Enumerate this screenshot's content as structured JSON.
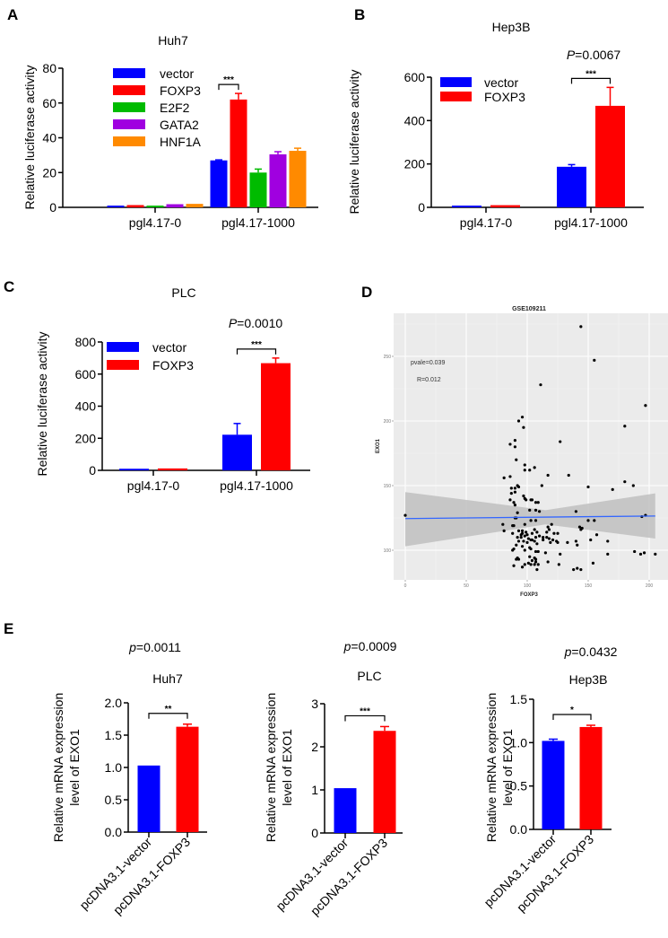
{
  "colors": {
    "vector": "#0000ff",
    "FOXP3": "#ff0000",
    "E2F2": "#00bb00",
    "GATA2": "#a000e0",
    "HNF1A": "#ff8a00",
    "scatter_bg": "#ebebeb",
    "fit_line": "#3366ff",
    "ci_band": "#bdbdbd"
  },
  "chart_data": [
    {
      "id": "A",
      "panel_label": "A",
      "type": "bar",
      "title": "Huh7",
      "ylabel": "Relative luciferase activity",
      "xlabel": "",
      "ylim": [
        0,
        80
      ],
      "yticks": [
        "0",
        "20",
        "40",
        "60",
        "80"
      ],
      "categories": [
        "pgl4.17-0",
        "pgl4.17-1000"
      ],
      "legend": [
        "vector",
        "FOXP3",
        "E2F2",
        "GATA2",
        "HNF1A"
      ],
      "legend_position": "top-left",
      "series": [
        {
          "name": "vector",
          "values": [
            1,
            27
          ],
          "errors": [
            0,
            0.3
          ]
        },
        {
          "name": "FOXP3",
          "values": [
            1.3,
            62
          ],
          "errors": [
            0,
            3.5
          ]
        },
        {
          "name": "E2F2",
          "values": [
            1,
            20
          ],
          "errors": [
            0,
            2
          ]
        },
        {
          "name": "GATA2",
          "values": [
            1.8,
            30.5
          ],
          "errors": [
            0,
            1.5
          ]
        },
        {
          "name": "HNF1A",
          "values": [
            2,
            32.5
          ],
          "errors": [
            0,
            1.5
          ]
        }
      ],
      "annotations": [
        {
          "text": "***",
          "category": "pgl4.17-1000",
          "between": [
            "vector",
            "FOXP3"
          ]
        }
      ]
    },
    {
      "id": "B",
      "panel_label": "B",
      "type": "bar",
      "title": "Hep3B",
      "ylabel": "Relative luciferase activity",
      "xlabel": "",
      "ylim": [
        0,
        600
      ],
      "yticks": [
        "0",
        "200",
        "400",
        "600"
      ],
      "categories": [
        "pgl4.17-0",
        "pgl4.17-1000"
      ],
      "legend": [
        "vector",
        "FOXP3"
      ],
      "legend_position": "top-left",
      "series": [
        {
          "name": "vector",
          "values": [
            8,
            187
          ],
          "errors": [
            0,
            10
          ]
        },
        {
          "name": "FOXP3",
          "values": [
            10,
            468
          ],
          "errors": [
            0,
            85
          ]
        }
      ],
      "pvalue_prefix": "P",
      "pvalue_text": "=0.0067",
      "annotations": [
        {
          "text": "***",
          "category": "pgl4.17-1000",
          "between": [
            "vector",
            "FOXP3"
          ]
        }
      ]
    },
    {
      "id": "C",
      "panel_label": "C",
      "type": "bar",
      "title": "PLC",
      "ylabel": "Relative luciferase activity",
      "xlabel": "",
      "ylim": [
        0,
        800
      ],
      "yticks": [
        "0",
        "200",
        "400",
        "600",
        "800"
      ],
      "categories": [
        "pgl4.17-0",
        "pgl4.17-1000"
      ],
      "legend": [
        "vector",
        "FOXP3"
      ],
      "legend_position": "top-left",
      "series": [
        {
          "name": "vector",
          "values": [
            10,
            222
          ],
          "errors": [
            0,
            70
          ]
        },
        {
          "name": "FOXP3",
          "values": [
            12,
            668
          ],
          "errors": [
            0,
            32
          ]
        }
      ],
      "pvalue_prefix": "P",
      "pvalue_text": "=0.0010",
      "annotations": [
        {
          "text": "***",
          "category": "pgl4.17-1000",
          "between": [
            "vector",
            "FOXP3"
          ]
        }
      ]
    },
    {
      "id": "D",
      "panel_label": "D",
      "type": "scatter",
      "title": "GSE109211",
      "xlabel": "FOXP3",
      "ylabel": "EXO1",
      "xlim": [
        -8,
        210
      ],
      "ylim": [
        76,
        282
      ],
      "xticks": [
        0,
        50,
        100,
        150,
        200
      ],
      "yticks": [
        100,
        150,
        200,
        250
      ],
      "grid": true,
      "annotations": [
        "pvale=0.039",
        "R=0.012"
      ],
      "fit": {
        "type": "linear",
        "x": [
          0,
          205
        ],
        "y": [
          124.5,
          126.5
        ],
        "ci_lower": [
          103,
          109
        ],
        "ci_upper": [
          145,
          144
        ],
        "ci_mid_lower": 120,
        "ci_mid_upper": 131,
        "ci_mid_x": 115
      },
      "points": [
        [
          0,
          127
        ],
        [
          144,
          273
        ],
        [
          155,
          247
        ],
        [
          111,
          228
        ],
        [
          197,
          212
        ],
        [
          96,
          203
        ],
        [
          93,
          200
        ],
        [
          97,
          195
        ],
        [
          180,
          196
        ],
        [
          90,
          185
        ],
        [
          127,
          184
        ],
        [
          86,
          182
        ],
        [
          90,
          180
        ],
        [
          91,
          170
        ],
        [
          98,
          166
        ],
        [
          81,
          156
        ],
        [
          86,
          157
        ],
        [
          117,
          158
        ],
        [
          134,
          158
        ],
        [
          98,
          162
        ],
        [
          102,
          162
        ],
        [
          106,
          164
        ],
        [
          112,
          150
        ],
        [
          150,
          149
        ],
        [
          180,
          153
        ],
        [
          187,
          150
        ],
        [
          170,
          147
        ],
        [
          92,
          150
        ],
        [
          93,
          149
        ],
        [
          87,
          148
        ],
        [
          90,
          148
        ],
        [
          87,
          144
        ],
        [
          90,
          145
        ],
        [
          97,
          142
        ],
        [
          98,
          140
        ],
        [
          99,
          139
        ],
        [
          103,
          139
        ],
        [
          104,
          139
        ],
        [
          86,
          139
        ],
        [
          89,
          137
        ],
        [
          90,
          135
        ],
        [
          107,
          137
        ],
        [
          109,
          137
        ],
        [
          102,
          131
        ],
        [
          107,
          131
        ],
        [
          110,
          130
        ],
        [
          140,
          130
        ],
        [
          92,
          129
        ],
        [
          91,
          125
        ],
        [
          90,
          125
        ],
        [
          103,
          123
        ],
        [
          107,
          123
        ],
        [
          150,
          123
        ],
        [
          155,
          123
        ],
        [
          194,
          126
        ],
        [
          197,
          127
        ],
        [
          80,
          120
        ],
        [
          88,
          119
        ],
        [
          89,
          119
        ],
        [
          98,
          120
        ],
        [
          120,
          120
        ],
        [
          117,
          118
        ],
        [
          118,
          116
        ],
        [
          143,
          118
        ],
        [
          144,
          116
        ],
        [
          145,
          117
        ],
        [
          81,
          115
        ],
        [
          93,
          115
        ],
        [
          96,
          115
        ],
        [
          99,
          114
        ],
        [
          88,
          113
        ],
        [
          95,
          112
        ],
        [
          96,
          113
        ],
        [
          100,
          112
        ],
        [
          104,
          113
        ],
        [
          106,
          116
        ],
        [
          108,
          114
        ],
        [
          116,
          114
        ],
        [
          122,
          113
        ],
        [
          125,
          113
        ],
        [
          157,
          112
        ],
        [
          92,
          110
        ],
        [
          95,
          110
        ],
        [
          98,
          111
        ],
        [
          101,
          109
        ],
        [
          103,
          108
        ],
        [
          107,
          110
        ],
        [
          110,
          111
        ],
        [
          113,
          110
        ],
        [
          116,
          110
        ],
        [
          118,
          109
        ],
        [
          121,
          108
        ],
        [
          124,
          107
        ],
        [
          93,
          107
        ],
        [
          97,
          107
        ],
        [
          100,
          106
        ],
        [
          104,
          108
        ],
        [
          106,
          107
        ],
        [
          113,
          108
        ],
        [
          119,
          106
        ],
        [
          125,
          106
        ],
        [
          133,
          106
        ],
        [
          140,
          107
        ],
        [
          152,
          108
        ],
        [
          166,
          107
        ],
        [
          91,
          104
        ],
        [
          96,
          103
        ],
        [
          102,
          102
        ],
        [
          108,
          105
        ],
        [
          141,
          104
        ],
        [
          88,
          100
        ],
        [
          89,
          101
        ],
        [
          98,
          100
        ],
        [
          103,
          101
        ],
        [
          107,
          99
        ],
        [
          109,
          99
        ],
        [
          115,
          98
        ],
        [
          127,
          97
        ],
        [
          166,
          97
        ],
        [
          188,
          99
        ],
        [
          193,
          97
        ],
        [
          196,
          98
        ],
        [
          205,
          97
        ],
        [
          91,
          93
        ],
        [
          92,
          94
        ],
        [
          93,
          93
        ],
        [
          102,
          95
        ],
        [
          106,
          94
        ],
        [
          107,
          93
        ],
        [
          104,
          92
        ],
        [
          107,
          91
        ],
        [
          101,
          90
        ],
        [
          106,
          89
        ],
        [
          117,
          91
        ],
        [
          126,
          89
        ],
        [
          154,
          90
        ],
        [
          89,
          88
        ],
        [
          96,
          87
        ],
        [
          98,
          89
        ],
        [
          103,
          89
        ],
        [
          109,
          89
        ],
        [
          108,
          85
        ],
        [
          138,
          85
        ],
        [
          141,
          86
        ],
        [
          144,
          85
        ]
      ]
    },
    {
      "id": "E1",
      "panel_label": "E",
      "type": "bar",
      "title": "Huh7",
      "ylabel": [
        "Relative mRNA expression",
        "level of EXO1"
      ],
      "ylim": [
        0,
        2.0
      ],
      "yticks": [
        "0.0",
        "0.5",
        "1.0",
        "1.5",
        "2.0"
      ],
      "categories": [
        "pcDNA3.1-vector",
        "pcDNA3.1-FOXP3"
      ],
      "values": [
        1.03,
        1.63
      ],
      "errors": [
        0,
        0.04
      ],
      "bar_colors": [
        "vector",
        "FOXP3"
      ],
      "pvalue_prefix": "p",
      "pvalue_text": "=0.0011",
      "annotations": [
        {
          "text": "**"
        }
      ]
    },
    {
      "id": "E2",
      "panel_label": "",
      "type": "bar",
      "title": "PLC",
      "ylabel": [
        "Relative mRNA expression",
        "level of EXO1"
      ],
      "ylim": [
        0,
        3
      ],
      "yticks": [
        "0",
        "1",
        "2",
        "3"
      ],
      "categories": [
        "pcDNA3.1-vector",
        "pcDNA3.1-FOXP3"
      ],
      "values": [
        1.04,
        2.37
      ],
      "errors": [
        0,
        0.1
      ],
      "bar_colors": [
        "vector",
        "FOXP3"
      ],
      "pvalue_prefix": "p",
      "pvalue_text": "=0.0009",
      "annotations": [
        {
          "text": "***"
        }
      ]
    },
    {
      "id": "E3",
      "panel_label": "",
      "type": "bar",
      "title": "Hep3B",
      "ylabel": [
        "Relative mRNA expression",
        "level of EXO1"
      ],
      "ylim": [
        0,
        1.5
      ],
      "yticks": [
        "0.0",
        "0.5",
        "1.0",
        "1.5"
      ],
      "categories": [
        "pcDNA3.1-vector",
        "pcDNA3.1-FOXP3"
      ],
      "values": [
        1.02,
        1.18
      ],
      "errors": [
        0.02,
        0.02
      ],
      "bar_colors": [
        "vector",
        "FOXP3"
      ],
      "pvalue_prefix": "p",
      "pvalue_text": "=0.0432",
      "annotations": [
        {
          "text": "*"
        }
      ]
    }
  ]
}
